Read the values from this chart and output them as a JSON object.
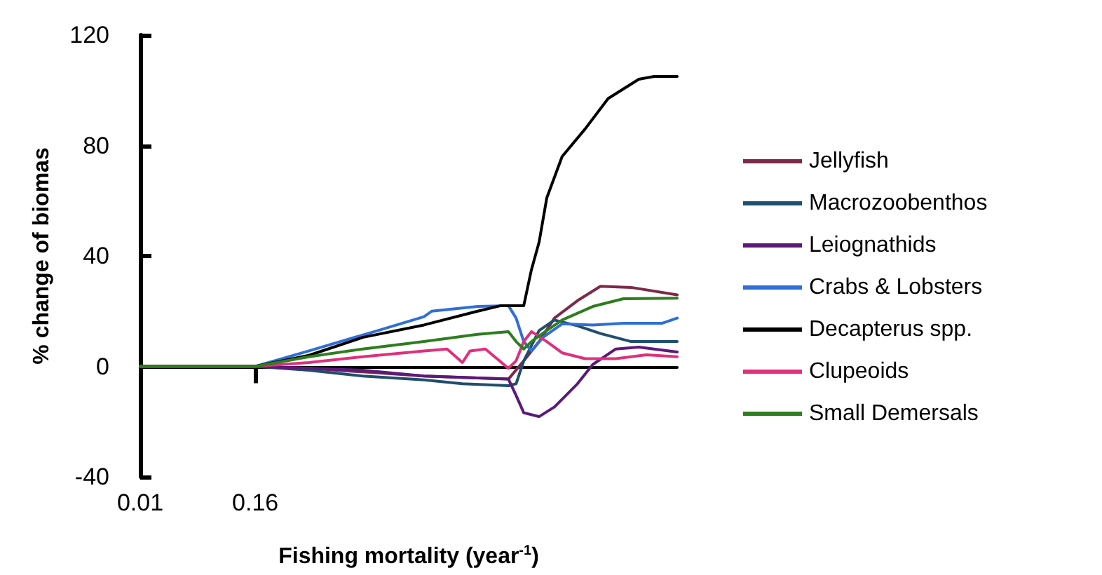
{
  "chart_data": {
    "type": "line",
    "xlabel": "Fishing mortality (year$^{-1}$)",
    "ylabel": "% change of biomas",
    "xlim": [
      0.01,
      0.71
    ],
    "xticks": [
      0.01,
      0.16
    ],
    "ylim": [
      -40,
      120
    ],
    "yticks": [
      -40,
      0,
      40,
      80,
      120
    ],
    "legend": "right",
    "marker": "none",
    "line_style": "solid",
    "series": [
      {
        "name": "Jellyfish",
        "color": "#7b2a4a",
        "x": [
          0.01,
          0.16,
          0.23,
          0.3,
          0.38,
          0.45,
          0.49,
          0.51,
          0.53,
          0.55,
          0.58,
          0.61,
          0.65,
          0.71
        ],
        "values": [
          0,
          0,
          -0.7,
          -2,
          -3.5,
          -4.2,
          -4.6,
          2,
          9,
          17.5,
          23.8,
          29,
          28.6,
          25.9
        ]
      },
      {
        "name": "Macrozoobenthos",
        "color": "#1f4e6e",
        "x": [
          0.01,
          0.16,
          0.23,
          0.3,
          0.38,
          0.43,
          0.49,
          0.5,
          0.51,
          0.53,
          0.55,
          0.58,
          0.61,
          0.65,
          0.71
        ],
        "values": [
          0,
          0,
          -1.4,
          -3.5,
          -4.9,
          -6.3,
          -7,
          -6.3,
          2,
          13,
          16.8,
          14.7,
          11.9,
          9,
          9
        ]
      },
      {
        "name": "Leiognathids",
        "color": "#5b1a7a",
        "x": [
          0.01,
          0.16,
          0.23,
          0.3,
          0.38,
          0.45,
          0.49,
          0.5,
          0.51,
          0.53,
          0.55,
          0.58,
          0.6,
          0.63,
          0.66,
          0.71
        ],
        "values": [
          0,
          0,
          -0.7,
          -1.4,
          -3.5,
          -4.2,
          -4.6,
          -10.5,
          -16.8,
          -18.2,
          -14.7,
          -6.3,
          0.7,
          6.3,
          7,
          5.2
        ]
      },
      {
        "name": "Crabs & Lobsters",
        "color": "#2f6fd6",
        "x": [
          0.01,
          0.16,
          0.23,
          0.32,
          0.38,
          0.39,
          0.45,
          0.49,
          0.5,
          0.51,
          0.52,
          0.535,
          0.56,
          0.6,
          0.64,
          0.69,
          0.71
        ],
        "values": [
          0,
          0,
          5.6,
          13,
          18,
          20,
          21.7,
          22,
          17.5,
          9,
          5.6,
          10.5,
          15.4,
          15,
          15.6,
          15.6,
          17.5
        ]
      },
      {
        "name": "Decapterus spp.",
        "color": "#000000",
        "x": [
          0.01,
          0.16,
          0.23,
          0.3,
          0.38,
          0.45,
          0.48,
          0.51,
          0.52,
          0.53,
          0.54,
          0.56,
          0.59,
          0.62,
          0.66,
          0.68,
          0.71
        ],
        "values": [
          0,
          0,
          4,
          10.5,
          15,
          20,
          22,
          22,
          35,
          45,
          61,
          76,
          86,
          97,
          104,
          105,
          105
        ]
      },
      {
        "name": "Clupeoids",
        "color": "#e0307a",
        "x": [
          0.01,
          0.16,
          0.23,
          0.3,
          0.38,
          0.41,
          0.43,
          0.44,
          0.46,
          0.49,
          0.5,
          0.51,
          0.52,
          0.54,
          0.56,
          0.59,
          0.63,
          0.67,
          0.71
        ],
        "values": [
          0,
          0,
          1.4,
          3.5,
          5.6,
          6.3,
          1.4,
          5.6,
          6.3,
          -0.7,
          2,
          9,
          12.6,
          9,
          4.9,
          2.8,
          2.8,
          4.2,
          3.5
        ]
      },
      {
        "name": "Small Demersals",
        "color": "#2e7d1e",
        "x": [
          0.01,
          0.16,
          0.23,
          0.3,
          0.38,
          0.45,
          0.49,
          0.5,
          0.51,
          0.52,
          0.54,
          0.56,
          0.6,
          0.64,
          0.71
        ],
        "values": [
          0,
          0,
          3.5,
          6.3,
          9,
          11.6,
          12.6,
          9,
          6.3,
          9,
          13,
          16.8,
          21.7,
          24.5,
          24.7
        ]
      }
    ]
  }
}
